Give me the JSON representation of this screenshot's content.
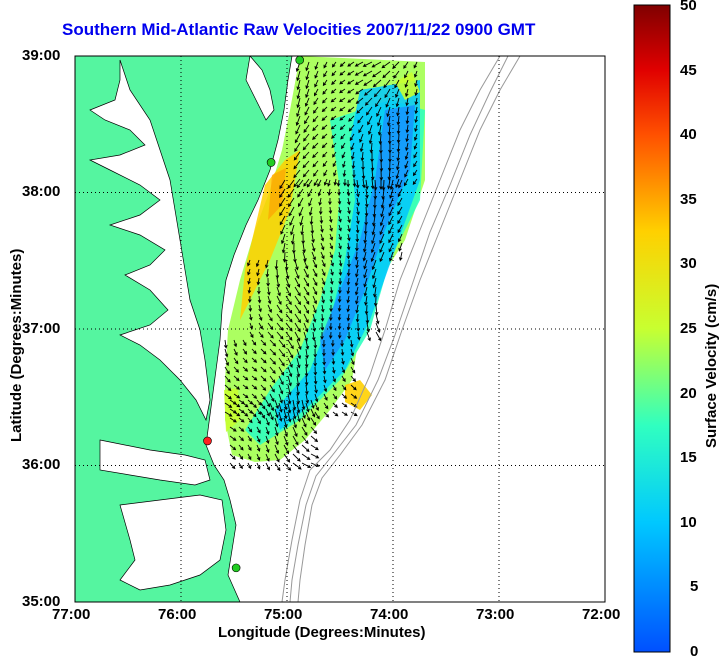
{
  "title": "Southern Mid-Atlantic Raw Velocities 2007/11/22 0900 GMT",
  "x_axis": {
    "label": "Longitude (Degrees:Minutes)",
    "ticks": [
      "77:00",
      "76:00",
      "75:00",
      "74:00",
      "73:00",
      "72:00"
    ]
  },
  "y_axis": {
    "label": "Latitude (Degrees:Minutes)",
    "ticks": [
      "39:00",
      "38:00",
      "37:00",
      "36:00",
      "35:00"
    ]
  },
  "colorbar": {
    "label": "Surface Velocity (cm/s)",
    "ticks": [
      "50",
      "45",
      "40",
      "35",
      "30",
      "25",
      "20",
      "15",
      "10",
      "5",
      "0"
    ],
    "range": [
      0,
      50
    ],
    "colormap": "jet"
  },
  "map": {
    "land_color": "#55f5a0",
    "water_color": "#ffffff",
    "bathymetry_color": "#999999",
    "grid": "dotted",
    "lon_range": [
      -77.0,
      -72.0
    ],
    "lat_range": [
      35.0,
      39.0
    ],
    "site_markers": [
      {
        "lon": -74.88,
        "lat": 38.97,
        "color": "#22cc22"
      },
      {
        "lon": -75.15,
        "lat": 38.22,
        "color": "#22cc22"
      },
      {
        "lon": -75.75,
        "lat": 36.18,
        "color": "#ff2020"
      },
      {
        "lon": -75.48,
        "lat": 35.25,
        "color": "#22cc22"
      }
    ]
  }
}
